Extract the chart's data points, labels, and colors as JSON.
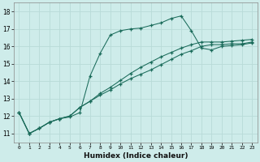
{
  "xlabel": "Humidex (Indice chaleur)",
  "bg_color": "#ceecea",
  "line_color": "#1a6b5a",
  "grid_color": "#b8dbd8",
  "xlim": [
    -0.5,
    23.5
  ],
  "ylim": [
    10.5,
    18.5
  ],
  "xticks": [
    0,
    1,
    2,
    3,
    4,
    5,
    6,
    7,
    8,
    9,
    10,
    11,
    12,
    13,
    14,
    15,
    16,
    17,
    18,
    19,
    20,
    21,
    22,
    23
  ],
  "yticks": [
    11,
    12,
    13,
    14,
    15,
    16,
    17,
    18
  ],
  "line1_x": [
    0,
    1,
    2,
    3,
    4,
    5,
    6,
    7,
    8,
    9,
    10,
    11,
    12,
    13,
    14,
    15,
    16,
    17,
    18,
    19,
    20,
    21,
    22,
    23
  ],
  "line1_y": [
    12.2,
    11.0,
    11.3,
    11.65,
    11.85,
    11.95,
    12.2,
    14.3,
    15.6,
    16.65,
    16.9,
    17.0,
    17.05,
    17.2,
    17.35,
    17.6,
    17.75,
    16.9,
    15.9,
    15.8,
    16.0,
    16.05,
    16.1,
    16.2
  ],
  "line2_x": [
    0,
    1,
    2,
    3,
    4,
    5,
    6,
    7,
    8,
    9,
    10,
    11,
    12,
    13,
    14,
    15,
    16,
    17,
    18,
    19,
    20,
    21,
    22,
    23
  ],
  "line2_y": [
    12.2,
    11.0,
    11.3,
    11.65,
    11.85,
    12.0,
    12.5,
    12.85,
    13.2,
    13.5,
    13.85,
    14.15,
    14.4,
    14.65,
    14.95,
    15.25,
    15.55,
    15.75,
    16.0,
    16.1,
    16.1,
    16.15,
    16.15,
    16.25
  ],
  "line3_x": [
    0,
    1,
    2,
    3,
    4,
    5,
    6,
    7,
    8,
    9,
    10,
    11,
    12,
    13,
    14,
    15,
    16,
    17,
    18,
    19,
    20,
    21,
    22,
    23
  ],
  "line3_y": [
    12.2,
    11.0,
    11.3,
    11.65,
    11.85,
    12.0,
    12.5,
    12.85,
    13.3,
    13.65,
    14.05,
    14.45,
    14.8,
    15.1,
    15.4,
    15.65,
    15.9,
    16.1,
    16.25,
    16.25,
    16.25,
    16.3,
    16.35,
    16.4
  ]
}
